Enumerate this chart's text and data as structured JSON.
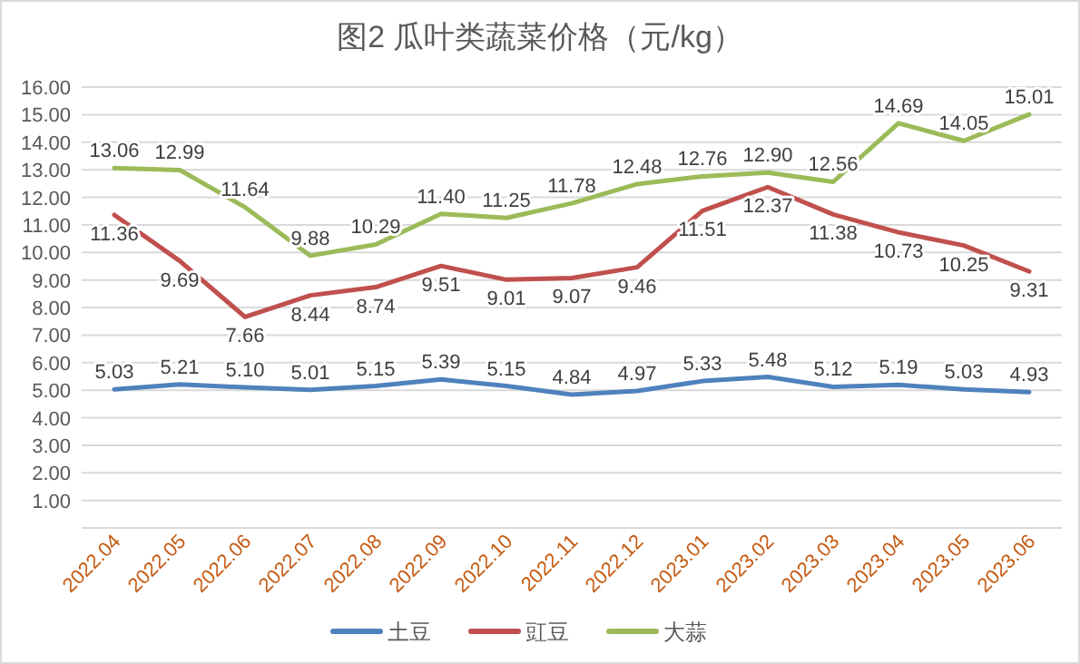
{
  "chart_data": {
    "type": "line",
    "title": "图2  瓜叶类蔬菜价格（元/kg）",
    "categories": [
      "2022.04",
      "2022.05",
      "2022.06",
      "2022.07",
      "2022.08",
      "2022.09",
      "2022.10",
      "2022.11",
      "2022.12",
      "2023.01",
      "2023.02",
      "2023.03",
      "2023.04",
      "2023.05",
      "2023.06"
    ],
    "series": [
      {
        "name": "土豆",
        "color": "#4f81bd",
        "values": [
          5.03,
          5.21,
          5.1,
          5.01,
          5.15,
          5.39,
          5.15,
          4.84,
          4.97,
          5.33,
          5.48,
          5.12,
          5.19,
          5.03,
          4.93
        ],
        "value_labels": [
          "5.03",
          "5.21",
          "5.10",
          "5.01",
          "5.15",
          "5.39",
          "5.15",
          "4.84",
          "4.97",
          "5.33",
          "5.48",
          "5.12",
          "5.19",
          "5.03",
          "4.93"
        ]
      },
      {
        "name": "豇豆",
        "color": "#c0504d",
        "values": [
          11.36,
          9.69,
          7.66,
          8.44,
          8.74,
          9.51,
          9.01,
          9.07,
          9.46,
          11.51,
          12.37,
          11.38,
          10.73,
          10.25,
          9.31
        ],
        "value_labels": [
          "11.36",
          "9.69",
          "7.66",
          "8.44",
          "8.74",
          "9.51",
          "9.01",
          "9.07",
          "9.46",
          "11.51",
          "12.37",
          "11.38",
          "10.73",
          "10.25",
          "9.31"
        ]
      },
      {
        "name": "大蒜",
        "color": "#9bbb59",
        "values": [
          13.06,
          12.99,
          11.64,
          9.88,
          10.29,
          11.4,
          11.25,
          11.78,
          12.48,
          12.76,
          12.9,
          12.56,
          14.69,
          14.05,
          15.01
        ],
        "value_labels": [
          "13.06",
          "12.99",
          "11.64",
          "9.88",
          "10.29",
          "11.40",
          "11.25",
          "11.78",
          "12.48",
          "12.76",
          "12.90",
          "12.56",
          "14.69",
          "14.05",
          "15.01"
        ]
      }
    ],
    "ylim": [
      0,
      16
    ],
    "yticks": [
      {
        "value": 0,
        "label": null
      },
      {
        "value": 1,
        "label": "1.00"
      },
      {
        "value": 2,
        "label": "2.00"
      },
      {
        "value": 3,
        "label": "3.00"
      },
      {
        "value": 4,
        "label": "4.00"
      },
      {
        "value": 5,
        "label": "5.00"
      },
      {
        "value": 6,
        "label": "6.00"
      },
      {
        "value": 7,
        "label": "7.00"
      },
      {
        "value": 8,
        "label": "8.00"
      },
      {
        "value": 9,
        "label": "9.00"
      },
      {
        "value": 10,
        "label": "10.00"
      },
      {
        "value": 11,
        "label": "11.00"
      },
      {
        "value": 12,
        "label": "12.00"
      },
      {
        "value": 13,
        "label": "13.00"
      },
      {
        "value": 14,
        "label": "14.00"
      },
      {
        "value": 15,
        "label": "15.00"
      },
      {
        "value": 16,
        "label": "16.00"
      }
    ],
    "grid": "y",
    "legend": "bottom",
    "marker": "none",
    "line_style": "solid"
  }
}
